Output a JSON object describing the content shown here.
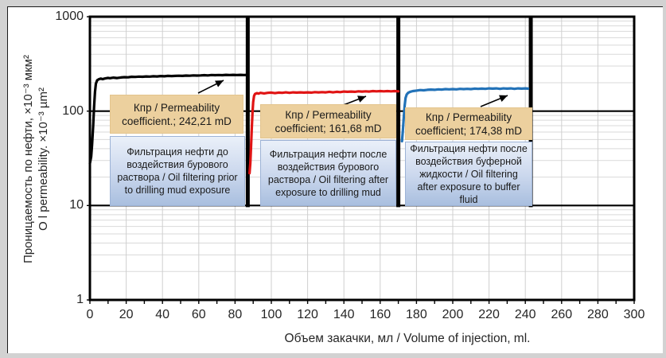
{
  "y_axis": {
    "title_ru": "Проницаемость по нефти, ×10⁻³ мкм²",
    "title_en": "O l permeability. ×10⁻³ µm²",
    "ticks": [
      {
        "label": "1000",
        "value": 1000
      },
      {
        "label": "100",
        "value": 100
      },
      {
        "label": "10",
        "value": 10
      },
      {
        "label": "1",
        "value": 1
      }
    ]
  },
  "x_axis": {
    "title": "Объем закачки, мл / Volume  of injection, ml.",
    "ticks": [
      0,
      20,
      40,
      60,
      80,
      100,
      120,
      140,
      160,
      180,
      200,
      220,
      240,
      260,
      280,
      300
    ]
  },
  "annotations": [
    {
      "coef": "Кпр / Permeability coefficient.; 242,21 mD",
      "desc": "Фильтрация нефти до воздействия бурового раствора / Oil filtering prior to drilling mud exposure"
    },
    {
      "coef": "Кпр / Permeability coefficient; 161,68 mD",
      "desc": "Фильтрация нефти после воздействия бурового раствора / Oil filtering after exposure to drilling mud"
    },
    {
      "coef": "Кпр / Permeability coefficient; 174,38 mD",
      "desc": "Фильтрация нефти после воздействия буферной жидкости / Oil filtering after exposure to buffer fluid"
    }
  ],
  "chart_data": {
    "type": "line",
    "xlabel": "Объем закачки, мл / Volume of injection, ml.",
    "ylabel": "Проницаемость по нефти, ×10⁻³ мкм² / O l permeability, ×10⁻³ µm²",
    "x_range": [
      0,
      300
    ],
    "y_range": [
      1,
      1000
    ],
    "y_scale": "log",
    "grid": true,
    "x_grid_step": 20,
    "dividers_x": [
      87,
      170,
      243
    ],
    "series": [
      {
        "name": "Oil filtering prior to drilling mud exposure",
        "name_ru": "Фильтрация нефти до воздействия бурового раствора",
        "color": "#000000",
        "permeability_mD": 242.21,
        "points": [
          [
            0,
            28
          ],
          [
            0.7,
            33
          ],
          [
            1.2,
            44
          ],
          [
            1.8,
            70
          ],
          [
            2.3,
            110
          ],
          [
            2.8,
            160
          ],
          [
            3.3,
            195
          ],
          [
            4,
            212
          ],
          [
            5,
            218
          ],
          [
            6,
            221
          ],
          [
            7,
            218
          ],
          [
            8,
            221
          ],
          [
            9,
            223
          ],
          [
            10,
            225
          ],
          [
            11,
            223
          ],
          [
            13,
            226
          ],
          [
            15,
            224
          ],
          [
            17,
            227
          ],
          [
            19,
            229
          ],
          [
            21,
            228
          ],
          [
            23,
            231
          ],
          [
            25,
            230
          ],
          [
            27,
            232
          ],
          [
            29,
            231
          ],
          [
            31,
            233
          ],
          [
            33,
            232
          ],
          [
            35,
            234
          ],
          [
            37,
            233
          ],
          [
            39,
            235
          ],
          [
            41,
            234
          ],
          [
            43,
            236
          ],
          [
            45,
            235
          ],
          [
            47,
            236
          ],
          [
            49,
            237
          ],
          [
            51,
            236
          ],
          [
            53,
            238
          ],
          [
            55,
            237
          ],
          [
            57,
            239
          ],
          [
            59,
            238
          ],
          [
            61,
            239
          ],
          [
            63,
            240
          ],
          [
            65,
            239
          ],
          [
            67,
            241
          ],
          [
            69,
            240
          ],
          [
            71,
            241
          ],
          [
            73,
            240
          ],
          [
            75,
            242
          ],
          [
            77,
            241
          ],
          [
            79,
            242
          ],
          [
            81,
            241
          ],
          [
            83,
            242
          ],
          [
            85,
            241
          ],
          [
            87,
            242
          ]
        ]
      },
      {
        "name": "Oil filtering after exposure to drilling mud",
        "name_ru": "Фильтрация нефти после воздействия бурового раствора",
        "color": "#e01414",
        "permeability_mD": 161.68,
        "points": [
          [
            88,
            22
          ],
          [
            88.4,
            28
          ],
          [
            88.8,
            42
          ],
          [
            89.2,
            65
          ],
          [
            89.6,
            95
          ],
          [
            90,
            125
          ],
          [
            90.5,
            145
          ],
          [
            91,
            152
          ],
          [
            92,
            155
          ],
          [
            93,
            153
          ],
          [
            94,
            156
          ],
          [
            96,
            154
          ],
          [
            98,
            156
          ],
          [
            100,
            157
          ],
          [
            102,
            155
          ],
          [
            104,
            157
          ],
          [
            106,
            156
          ],
          [
            108,
            158
          ],
          [
            110,
            156
          ],
          [
            112,
            158
          ],
          [
            114,
            157
          ],
          [
            116,
            158
          ],
          [
            118,
            157
          ],
          [
            120,
            158
          ],
          [
            122,
            157
          ],
          [
            124,
            159
          ],
          [
            126,
            158
          ],
          [
            128,
            159
          ],
          [
            130,
            158
          ],
          [
            132,
            160
          ],
          [
            134,
            158
          ],
          [
            136,
            160
          ],
          [
            138,
            159
          ],
          [
            140,
            161
          ],
          [
            142,
            160
          ],
          [
            144,
            161
          ],
          [
            146,
            160
          ],
          [
            148,
            162
          ],
          [
            150,
            161
          ],
          [
            152,
            162
          ],
          [
            154,
            161
          ],
          [
            156,
            163
          ],
          [
            158,
            162
          ],
          [
            160,
            163
          ],
          [
            162,
            162
          ],
          [
            164,
            163
          ],
          [
            166,
            162
          ],
          [
            168,
            163
          ],
          [
            170,
            162
          ]
        ]
      },
      {
        "name": "Oil filtering after exposure to buffer fluid",
        "name_ru": "Фильтрация нефти после воздействия буферной жидкости",
        "color": "#2272b8",
        "permeability_mD": 174.38,
        "points": [
          [
            172,
            48
          ],
          [
            172.5,
            62
          ],
          [
            173,
            85
          ],
          [
            173.5,
            115
          ],
          [
            174,
            138
          ],
          [
            174.6,
            150
          ],
          [
            175.4,
            156
          ],
          [
            176.5,
            160
          ],
          [
            178,
            163
          ],
          [
            180,
            165
          ],
          [
            182,
            167
          ],
          [
            184,
            166
          ],
          [
            186,
            168
          ],
          [
            188,
            169
          ],
          [
            190,
            168
          ],
          [
            192,
            170
          ],
          [
            194,
            169
          ],
          [
            196,
            171
          ],
          [
            198,
            170
          ],
          [
            200,
            171
          ],
          [
            202,
            170
          ],
          [
            204,
            172
          ],
          [
            206,
            171
          ],
          [
            208,
            172
          ],
          [
            210,
            171
          ],
          [
            212,
            173
          ],
          [
            214,
            172
          ],
          [
            216,
            173
          ],
          [
            218,
            172
          ],
          [
            220,
            174
          ],
          [
            222,
            173
          ],
          [
            224,
            174
          ],
          [
            226,
            172
          ],
          [
            228,
            174
          ],
          [
            230,
            173
          ],
          [
            232,
            174
          ],
          [
            234,
            172
          ],
          [
            236,
            174
          ],
          [
            238,
            173
          ],
          [
            240,
            174
          ],
          [
            241.5,
            173
          ]
        ]
      }
    ]
  }
}
